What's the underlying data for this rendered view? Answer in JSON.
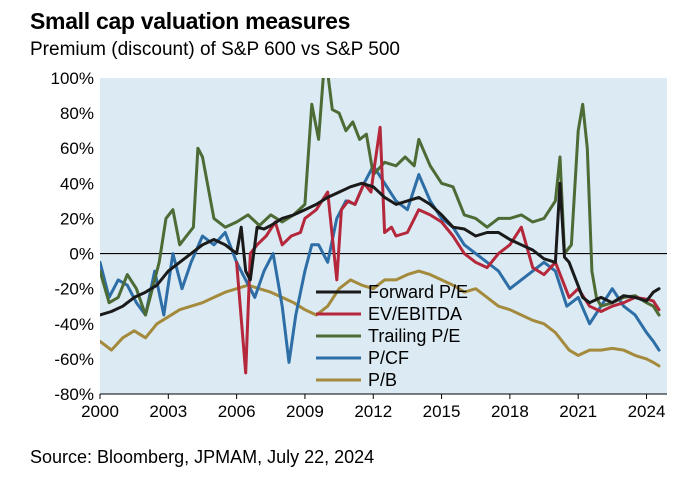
{
  "header": {
    "title": "Small cap valuation measures",
    "subtitle": "Premium (discount) of S&P 600 vs S&P 500"
  },
  "footer": {
    "source": "Source: Bloomberg, JPMAM, July 22, 2024"
  },
  "colors": {
    "background": "#dbeaf3",
    "forward_pe": "#1a1a1a",
    "ev_ebitda": "#b5273b",
    "trailing_pe": "#4d6b35",
    "p_cf": "#2e6ea6",
    "p_b": "#a48a3c"
  },
  "chart_data": {
    "type": "line",
    "title": "Small cap valuation measures",
    "subtitle": "Premium (discount) of S&P 600 vs S&P 500",
    "xlim": [
      2000,
      2024.9
    ],
    "ylim": [
      -80,
      100
    ],
    "x_ticks": [
      2000,
      2003,
      2006,
      2009,
      2012,
      2015,
      2018,
      2021,
      2024
    ],
    "y_ticks": [
      -80,
      -60,
      -40,
      -20,
      0,
      20,
      40,
      60,
      80,
      100
    ],
    "y_tick_labels": [
      "-80%",
      "-60%",
      "-40%",
      "-20%",
      "0%",
      "20%",
      "40%",
      "60%",
      "80%",
      "100%"
    ],
    "x_tick_labels": [
      "2000",
      "2003",
      "2006",
      "2009",
      "2012",
      "2015",
      "2018",
      "2021",
      "2024"
    ],
    "legend_position": "center-bottom",
    "series": [
      {
        "name": "Forward P/E",
        "key": "forward_pe",
        "x": [
          2000,
          2000.5,
          2001,
          2001.5,
          2002,
          2002.5,
          2003,
          2003.5,
          2004,
          2004.5,
          2005,
          2005.5,
          2006,
          2006.2,
          2006.4,
          2006.6,
          2006.9,
          2007.2,
          2007.5,
          2008,
          2008.5,
          2009,
          2009.5,
          2010,
          2010.5,
          2011,
          2011.5,
          2012,
          2012.5,
          2013,
          2013.5,
          2014,
          2014.5,
          2015,
          2015.5,
          2016,
          2016.5,
          2017,
          2017.5,
          2018,
          2018.5,
          2019,
          2019.5,
          2020,
          2020.2,
          2020.4,
          2020.6,
          2020.9,
          2021.2,
          2021.5,
          2022,
          2022.5,
          2023,
          2023.5,
          2024,
          2024.3,
          2024.55
        ],
        "y": [
          -35,
          -33,
          -30,
          -25,
          -22,
          -18,
          -10,
          -5,
          0,
          5,
          8,
          5,
          0,
          15,
          -10,
          -15,
          15,
          14,
          16,
          20,
          22,
          25,
          28,
          32,
          35,
          38,
          40,
          38,
          32,
          28,
          30,
          32,
          28,
          22,
          15,
          14,
          10,
          12,
          12,
          8,
          5,
          2,
          -3,
          -5,
          40,
          -2,
          -5,
          -15,
          -25,
          -28,
          -25,
          -28,
          -24,
          -25,
          -27,
          -22,
          -20
        ]
      },
      {
        "name": "EV/EBITDA",
        "key": "ev_ebitda",
        "x": [
          2006,
          2006.4,
          2006.6,
          2006.9,
          2007.3,
          2007.7,
          2008,
          2008.4,
          2008.8,
          2009,
          2009.5,
          2010,
          2010.4,
          2010.6,
          2010.9,
          2011.2,
          2011.6,
          2011.9,
          2012,
          2012.3,
          2012.5,
          2012.8,
          2013,
          2013.5,
          2014,
          2014.5,
          2015,
          2015.5,
          2016,
          2016.5,
          2017,
          2017.5,
          2018,
          2018.5,
          2019,
          2019.5,
          2020,
          2020.3,
          2020.6,
          2021,
          2021.5,
          2022,
          2022.5,
          2023,
          2023.5,
          2024,
          2024.3,
          2024.55
        ],
        "y": [
          -5,
          -68,
          0,
          5,
          10,
          18,
          5,
          10,
          12,
          20,
          25,
          35,
          -15,
          25,
          30,
          28,
          40,
          35,
          45,
          72,
          12,
          15,
          10,
          12,
          25,
          22,
          18,
          10,
          0,
          -5,
          -8,
          0,
          5,
          15,
          -8,
          -12,
          -5,
          -15,
          -25,
          -20,
          -30,
          -33,
          -30,
          -28,
          -25,
          -26,
          -27,
          -32
        ]
      },
      {
        "name": "Trailing P/E",
        "key": "trailing_pe",
        "x": [
          2000,
          2000.4,
          2000.8,
          2001.2,
          2001.6,
          2002,
          2002.3,
          2002.6,
          2002.9,
          2003.2,
          2003.5,
          2003.8,
          2004.1,
          2004.3,
          2004.5,
          2005,
          2005.5,
          2006,
          2006.5,
          2007,
          2007.5,
          2008,
          2008.5,
          2009,
          2009.3,
          2009.6,
          2009.8,
          2010,
          2010.2,
          2010.5,
          2010.8,
          2011.1,
          2011.4,
          2011.7,
          2012,
          2012.5,
          2013,
          2013.4,
          2013.8,
          2014,
          2014.5,
          2015,
          2015.5,
          2016,
          2016.5,
          2017,
          2017.5,
          2018,
          2018.5,
          2019,
          2019.5,
          2020,
          2020.2,
          2020.4,
          2020.7,
          2021,
          2021.2,
          2021.4,
          2021.6,
          2021.8,
          2022,
          2022.5,
          2023,
          2023.5,
          2024,
          2024.3,
          2024.55
        ],
        "y": [
          -10,
          -28,
          -25,
          -12,
          -20,
          -35,
          -20,
          -5,
          20,
          25,
          5,
          10,
          15,
          60,
          55,
          20,
          15,
          18,
          22,
          16,
          22,
          18,
          22,
          28,
          85,
          65,
          100,
          103,
          82,
          80,
          70,
          75,
          65,
          68,
          45,
          52,
          50,
          55,
          50,
          65,
          50,
          40,
          38,
          22,
          20,
          15,
          20,
          20,
          22,
          18,
          20,
          30,
          55,
          0,
          5,
          70,
          85,
          60,
          -10,
          -25,
          -30,
          -28,
          -25,
          -24,
          -28,
          -30,
          -35
        ]
      },
      {
        "name": "P/CF",
        "key": "p_cf",
        "x": [
          2000,
          2000.4,
          2000.8,
          2001.2,
          2001.6,
          2002,
          2002.4,
          2002.8,
          2003.2,
          2003.6,
          2004,
          2004.5,
          2005,
          2005.5,
          2006,
          2006.4,
          2006.8,
          2007.2,
          2007.6,
          2008,
          2008.3,
          2008.6,
          2009,
          2009.3,
          2009.6,
          2010,
          2010.4,
          2010.8,
          2011.2,
          2011.6,
          2012,
          2012.5,
          2013,
          2013.5,
          2014,
          2014.5,
          2015,
          2015.5,
          2016,
          2016.5,
          2017,
          2017.5,
          2018,
          2018.5,
          2019,
          2019.5,
          2020,
          2020.5,
          2021,
          2021.5,
          2022,
          2022.5,
          2023,
          2023.5,
          2024,
          2024.3,
          2024.55
        ],
        "y": [
          -5,
          -25,
          -15,
          -18,
          -28,
          -35,
          -10,
          -35,
          0,
          -20,
          -5,
          10,
          5,
          12,
          -5,
          -15,
          -25,
          -10,
          0,
          -30,
          -62,
          -35,
          -10,
          5,
          5,
          -5,
          20,
          30,
          28,
          40,
          50,
          40,
          30,
          25,
          45,
          30,
          20,
          15,
          5,
          0,
          -5,
          -10,
          -20,
          -15,
          -10,
          -5,
          -10,
          -30,
          -25,
          -40,
          -30,
          -20,
          -30,
          -35,
          -45,
          -50,
          -55
        ]
      },
      {
        "name": "P/B",
        "key": "p_b",
        "x": [
          2000,
          2000.5,
          2001,
          2001.5,
          2002,
          2002.5,
          2003,
          2003.5,
          2004,
          2004.5,
          2005,
          2005.5,
          2006,
          2006.5,
          2007,
          2007.5,
          2008,
          2008.5,
          2009,
          2009.5,
          2010,
          2010.5,
          2011,
          2011.5,
          2012,
          2012.5,
          2013,
          2013.5,
          2014,
          2014.5,
          2015,
          2015.5,
          2016,
          2016.5,
          2017,
          2017.5,
          2018,
          2018.5,
          2019,
          2019.5,
          2020,
          2020.3,
          2020.6,
          2021,
          2021.5,
          2022,
          2022.5,
          2023,
          2023.5,
          2024,
          2024.3,
          2024.55
        ],
        "y": [
          -50,
          -55,
          -48,
          -44,
          -48,
          -40,
          -36,
          -32,
          -30,
          -28,
          -25,
          -22,
          -20,
          -18,
          -20,
          -22,
          -25,
          -28,
          -32,
          -35,
          -30,
          -20,
          -15,
          -18,
          -20,
          -15,
          -15,
          -12,
          -10,
          -12,
          -15,
          -18,
          -22,
          -20,
          -25,
          -30,
          -32,
          -35,
          -38,
          -40,
          -45,
          -50,
          -55,
          -58,
          -55,
          -55,
          -54,
          -55,
          -58,
          -60,
          -62,
          -64
        ]
      }
    ]
  }
}
